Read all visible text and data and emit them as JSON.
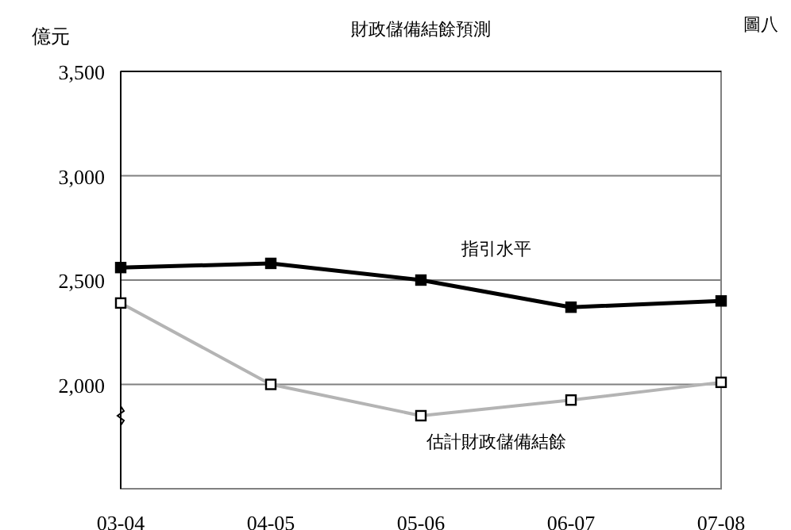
{
  "chart_data": {
    "type": "line",
    "title": "財政儲備結餘預測",
    "ylabel": "億元",
    "annotations": [
      "圖八"
    ],
    "categories": [
      "03-04",
      "04-05",
      "05-06",
      "06-07",
      "07-08"
    ],
    "series": [
      {
        "name": "指引水平",
        "color": "#000000",
        "values": [
          2560,
          2580,
          2500,
          2370,
          2400
        ]
      },
      {
        "name": "估計財政儲備結餘",
        "color": "#b4b4b4",
        "values": [
          2390,
          2000,
          1850,
          1925,
          2010
        ]
      }
    ],
    "ylim": [
      1500,
      3500
    ],
    "yticks": [
      {
        "value": 2000,
        "label": "2,000"
      },
      {
        "value": 2500,
        "label": "2,500"
      },
      {
        "value": 3000,
        "label": "3,000"
      },
      {
        "value": 3500,
        "label": "3,500"
      }
    ],
    "grid": "y",
    "legend": false,
    "marker": "square",
    "line_style": "solid"
  }
}
